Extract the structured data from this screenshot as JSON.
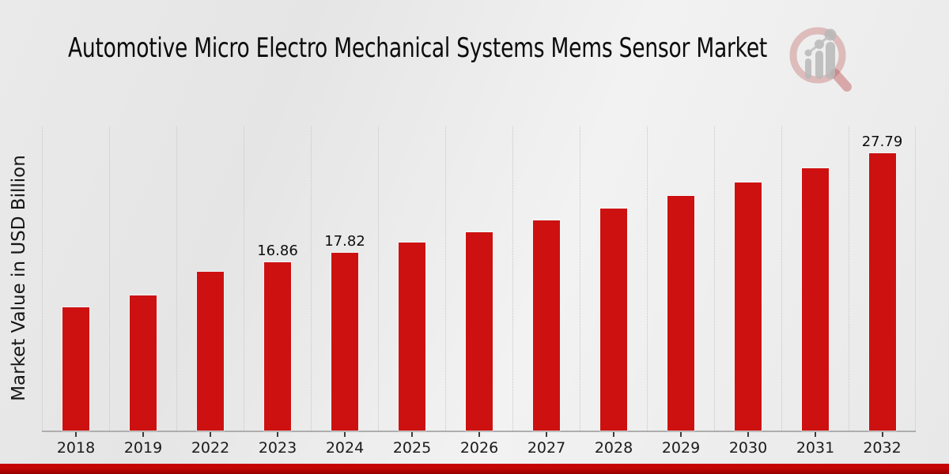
{
  "title": "Automotive Micro Electro Mechanical Systems Mems Sensor Market",
  "logo": {
    "name": "market-research-magnifier-logo"
  },
  "chart_data": {
    "type": "bar",
    "title": "Automotive Micro Electro Mechanical Systems Mems Sensor Market",
    "xlabel": "",
    "ylabel": "Market Value in USD Billion",
    "categories": [
      "2018",
      "2019",
      "2022",
      "2023",
      "2024",
      "2025",
      "2026",
      "2027",
      "2028",
      "2029",
      "2030",
      "2031",
      "2032"
    ],
    "values": [
      12.38,
      13.55,
      15.95,
      16.86,
      17.82,
      18.84,
      19.91,
      21.05,
      22.25,
      23.52,
      24.87,
      26.29,
      27.79
    ],
    "value_labels": {
      "2023": "16.86",
      "2024": "17.82",
      "2032": "27.79"
    },
    "ylim": [
      0,
      30.5
    ],
    "grid": "vertical-dotted-column-separators",
    "legend": "none",
    "bar_color": "#cd1111"
  },
  "colors": {
    "bar": "#cd1111",
    "banner_top": "#c70404",
    "banner_bottom": "#950101",
    "gridline": "#c6c6c6",
    "axis_line": "#aeaeae",
    "text": "#111111",
    "background": "#ebebeb"
  }
}
